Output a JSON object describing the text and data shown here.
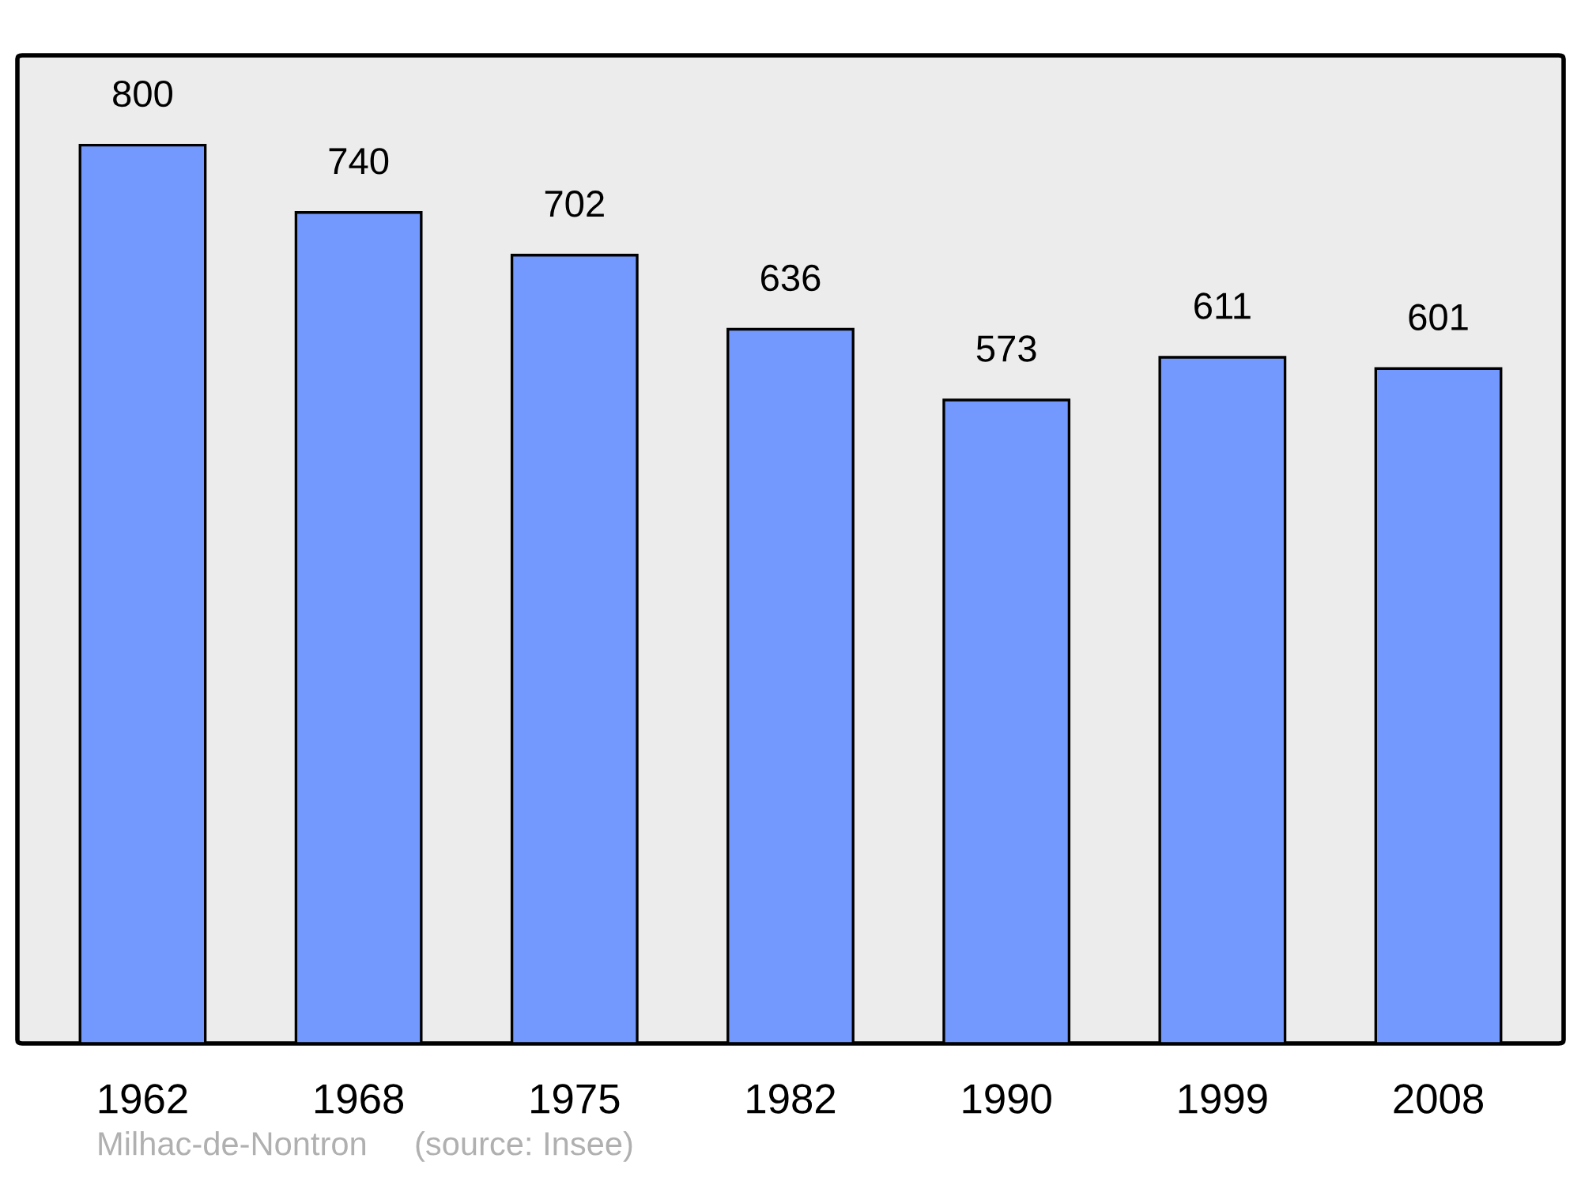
{
  "chart_data": {
    "type": "bar",
    "categories": [
      "1962",
      "1968",
      "1975",
      "1982",
      "1990",
      "1999",
      "2008"
    ],
    "values": [
      800,
      740,
      702,
      636,
      573,
      611,
      601
    ],
    "color": "#7399ff",
    "data_labels": true,
    "annotations": [
      "Milhac-de-Nontron",
      "(source: Insee)"
    ]
  }
}
